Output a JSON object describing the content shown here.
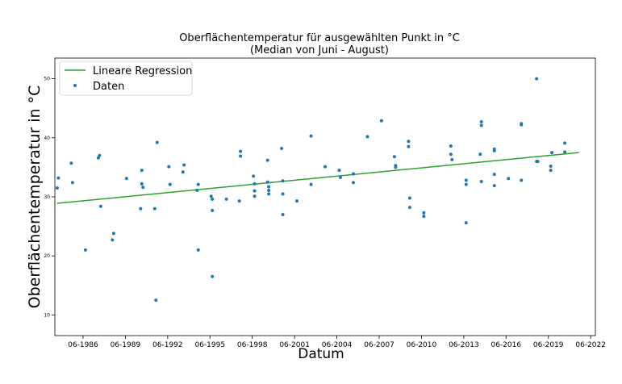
{
  "chart_data": {
    "type": "scatter",
    "title": "Oberflächentemperatur für ausgewählten Punkt in °C",
    "subtitle": "(Median von Juni - August)",
    "xlabel": "Datum",
    "ylabel": "Oberflächentemperatur in °C",
    "x_ticks": [
      "06-1986",
      "06-1989",
      "06-1992",
      "06-1995",
      "06-1998",
      "06-2001",
      "06-2004",
      "06-2007",
      "06-2010",
      "06-2013",
      "06-2016",
      "06-2019",
      "06-2022"
    ],
    "y_ticks": [
      "10",
      "20",
      "30",
      "40",
      "50"
    ],
    "xlim": [
      "1984-06",
      "2022-10"
    ],
    "ylim": [
      6.5,
      53.5
    ],
    "grid": false,
    "legend_position": "top-left",
    "series": [
      {
        "name": "Lineare Regression",
        "kind": "line",
        "color": "#2ca02c",
        "points": [
          {
            "x": "1984-08",
            "y": 28.9
          },
          {
            "x": "2021-08",
            "y": 37.5
          }
        ]
      },
      {
        "name": "Daten",
        "kind": "scatter",
        "color": "#1f77b4",
        "points": [
          {
            "x": "1984-08",
            "y": 31.5
          },
          {
            "x": "1984-09",
            "y": 33.2
          },
          {
            "x": "1985-08",
            "y": 35.7
          },
          {
            "x": "1985-09",
            "y": 32.4
          },
          {
            "x": "1986-08",
            "y": 21.0
          },
          {
            "x": "1987-07",
            "y": 36.6
          },
          {
            "x": "1987-08",
            "y": 37.0
          },
          {
            "x": "1987-09",
            "y": 28.4
          },
          {
            "x": "1988-07",
            "y": 22.7
          },
          {
            "x": "1988-08",
            "y": 23.8
          },
          {
            "x": "1989-07",
            "y": 33.1
          },
          {
            "x": "1990-07",
            "y": 28.0
          },
          {
            "x": "1990-08",
            "y": 34.5
          },
          {
            "x": "1990-08",
            "y": 32.2
          },
          {
            "x": "1990-09",
            "y": 31.6
          },
          {
            "x": "1991-07",
            "y": 28.0
          },
          {
            "x": "1991-08",
            "y": 12.5
          },
          {
            "x": "1991-09",
            "y": 39.2
          },
          {
            "x": "1992-07",
            "y": 35.1
          },
          {
            "x": "1992-08",
            "y": 32.1
          },
          {
            "x": "1993-07",
            "y": 34.2
          },
          {
            "x": "1993-08",
            "y": 35.4
          },
          {
            "x": "1994-07",
            "y": 31.1
          },
          {
            "x": "1994-08",
            "y": 32.1
          },
          {
            "x": "1994-08",
            "y": 21.0
          },
          {
            "x": "1995-07",
            "y": 30.1
          },
          {
            "x": "1995-08",
            "y": 29.6
          },
          {
            "x": "1995-08",
            "y": 27.7
          },
          {
            "x": "1995-08",
            "y": 16.5
          },
          {
            "x": "1996-08",
            "y": 29.6
          },
          {
            "x": "1997-07",
            "y": 29.3
          },
          {
            "x": "1997-08",
            "y": 37.7
          },
          {
            "x": "1997-08",
            "y": 36.9
          },
          {
            "x": "1998-07",
            "y": 33.5
          },
          {
            "x": "1998-08",
            "y": 32.2
          },
          {
            "x": "1998-08",
            "y": 31.0
          },
          {
            "x": "1998-08",
            "y": 30.1
          },
          {
            "x": "1999-07",
            "y": 36.2
          },
          {
            "x": "1999-07",
            "y": 32.5
          },
          {
            "x": "1999-08",
            "y": 31.7
          },
          {
            "x": "1999-08",
            "y": 31.1
          },
          {
            "x": "1999-08",
            "y": 30.5
          },
          {
            "x": "2000-07",
            "y": 38.2
          },
          {
            "x": "2000-08",
            "y": 32.7
          },
          {
            "x": "2000-08",
            "y": 30.5
          },
          {
            "x": "2000-08",
            "y": 27.0
          },
          {
            "x": "2001-08",
            "y": 29.3
          },
          {
            "x": "2002-08",
            "y": 40.3
          },
          {
            "x": "2002-08",
            "y": 32.1
          },
          {
            "x": "2003-08",
            "y": 35.1
          },
          {
            "x": "2004-08",
            "y": 34.5
          },
          {
            "x": "2004-09",
            "y": 33.3
          },
          {
            "x": "2005-08",
            "y": 33.9
          },
          {
            "x": "2005-08",
            "y": 32.4
          },
          {
            "x": "2006-08",
            "y": 40.2
          },
          {
            "x": "2007-08",
            "y": 42.9
          },
          {
            "x": "2008-07",
            "y": 36.8
          },
          {
            "x": "2008-08",
            "y": 35.3
          },
          {
            "x": "2008-08",
            "y": 35.0
          },
          {
            "x": "2009-07",
            "y": 39.4
          },
          {
            "x": "2009-07",
            "y": 38.5
          },
          {
            "x": "2009-08",
            "y": 29.8
          },
          {
            "x": "2009-08",
            "y": 28.2
          },
          {
            "x": "2010-08",
            "y": 27.3
          },
          {
            "x": "2010-08",
            "y": 26.7
          },
          {
            "x": "2012-07",
            "y": 38.6
          },
          {
            "x": "2012-07",
            "y": 37.2
          },
          {
            "x": "2012-08",
            "y": 36.3
          },
          {
            "x": "2013-08",
            "y": 32.8
          },
          {
            "x": "2013-08",
            "y": 32.1
          },
          {
            "x": "2013-08",
            "y": 25.6
          },
          {
            "x": "2014-08",
            "y": 37.2
          },
          {
            "x": "2014-09",
            "y": 42.7
          },
          {
            "x": "2014-09",
            "y": 42.1
          },
          {
            "x": "2014-09",
            "y": 32.6
          },
          {
            "x": "2015-08",
            "y": 38.1
          },
          {
            "x": "2015-08",
            "y": 37.8
          },
          {
            "x": "2015-08",
            "y": 33.8
          },
          {
            "x": "2015-08",
            "y": 31.9
          },
          {
            "x": "2016-08",
            "y": 33.1
          },
          {
            "x": "2017-07",
            "y": 42.4
          },
          {
            "x": "2017-07",
            "y": 42.2
          },
          {
            "x": "2017-07",
            "y": 32.8
          },
          {
            "x": "2018-08",
            "y": 50.0
          },
          {
            "x": "2018-08",
            "y": 36.0
          },
          {
            "x": "2018-09",
            "y": 36.0
          },
          {
            "x": "2019-08",
            "y": 35.2
          },
          {
            "x": "2019-08",
            "y": 34.5
          },
          {
            "x": "2019-09",
            "y": 37.5
          },
          {
            "x": "2020-08",
            "y": 39.1
          },
          {
            "x": "2020-08",
            "y": 37.6
          }
        ]
      }
    ]
  }
}
